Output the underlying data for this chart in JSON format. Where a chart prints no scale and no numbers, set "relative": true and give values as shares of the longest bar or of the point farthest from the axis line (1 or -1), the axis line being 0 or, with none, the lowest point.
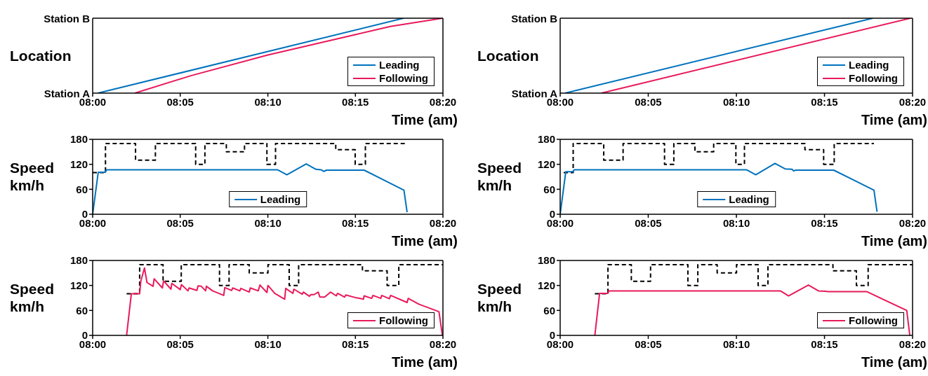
{
  "chart_data": [
    {
      "type": "line",
      "ylabel": "Location",
      "xlabel": "Time (am)",
      "legend": "bottom right",
      "relative": true,
      "annotations": [
        "Station B",
        "Station A"
      ],
      "xlim": [
        8,
        8.3333
      ],
      "xticks": [
        {
          "value": 8,
          "label": "08:00"
        },
        {
          "value": 8.0833,
          "label": "08:05"
        },
        {
          "value": 8.1667,
          "label": "08:10"
        },
        {
          "value": 8.25,
          "label": "08:15"
        },
        {
          "value": 8.3333,
          "label": "08:20"
        }
      ],
      "series": [
        {
          "name": "Leading",
          "color": "#0072bd",
          "x": [
            8.005,
            8.2958
          ],
          "values": [
            0,
            1
          ]
        },
        {
          "name": "Following",
          "color": "#e8195a",
          "x": [
            8.0402,
            8.0928,
            8.1668,
            8.2498,
            8.2833,
            8.3328
          ],
          "values": [
            0,
            0.23,
            0.51,
            0.78,
            0.89,
            1
          ]
        }
      ]
    },
    {
      "type": "line",
      "ylabel": "Location",
      "xlabel": "Time (am)",
      "legend": "bottom right",
      "relative": true,
      "annotations": [
        "Station B",
        "Station A"
      ],
      "xlim": [
        8,
        8.3333
      ],
      "xticks": [
        {
          "value": 8,
          "label": "08:00"
        },
        {
          "value": 8.0833,
          "label": "08:05"
        },
        {
          "value": 8.1667,
          "label": "08:10"
        },
        {
          "value": 8.25,
          "label": "08:15"
        },
        {
          "value": 8.3333,
          "label": "08:20"
        }
      ],
      "series": [
        {
          "name": "Leading",
          "color": "#0072bd",
          "x": [
            8.0047,
            8.2957
          ],
          "values": [
            0,
            1
          ]
        },
        {
          "name": "Following",
          "color": "#e8195a",
          "x": [
            8.039,
            8.3312
          ],
          "values": [
            0,
            1
          ]
        }
      ]
    },
    {
      "type": "line",
      "ylabel": "Speed km/h",
      "xlabel": "Time (am)",
      "legend": "bottom",
      "xlim": [
        8,
        8.3333
      ],
      "xticks": [
        {
          "value": 8,
          "label": "08:00"
        },
        {
          "value": 8.0833,
          "label": "08:05"
        },
        {
          "value": 8.1667,
          "label": "08:10"
        },
        {
          "value": 8.25,
          "label": "08:15"
        },
        {
          "value": 8.3333,
          "label": "08:20"
        }
      ],
      "ylim": [
        0,
        180
      ],
      "yticks": [
        0,
        60,
        120,
        180
      ],
      "series": [
        {
          "type": "step",
          "color": "#000000",
          "line_style": "dashed",
          "x": [
            8,
            8.0122,
            8.0408,
            8.0597,
            8.098,
            8.1068,
            8.1272,
            8.1445,
            8.1658,
            8.174,
            8.2313,
            8.2498,
            8.2595,
            8.297
          ],
          "values": [
            100,
            170,
            130,
            170,
            120,
            170,
            150,
            170,
            120,
            170,
            155,
            120,
            170,
            170
          ]
        },
        {
          "name": "Leading",
          "color": "#0072bd",
          "x": [
            8,
            8.0053,
            8.0122,
            8.0132,
            8.1758,
            8.1848,
            8.2032,
            8.2125,
            8.2173,
            8.22,
            8.2225,
            8.2583,
            8.2962,
            8.2992
          ],
          "values": [
            0,
            101,
            101,
            107,
            107,
            95,
            121,
            108,
            107,
            103,
            106,
            106,
            58,
            5
          ]
        }
      ]
    },
    {
      "type": "line",
      "ylabel": "Speed km/h",
      "xlabel": "Time (am)",
      "legend": "bottom",
      "xlim": [
        8,
        8.3333
      ],
      "xticks": [
        {
          "value": 8,
          "label": "08:00"
        },
        {
          "value": 8.0833,
          "label": "08:05"
        },
        {
          "value": 8.1667,
          "label": "08:10"
        },
        {
          "value": 8.25,
          "label": "08:15"
        },
        {
          "value": 8.3333,
          "label": "08:20"
        }
      ],
      "ylim": [
        0,
        180
      ],
      "yticks": [
        0,
        60,
        120,
        180
      ],
      "series": [
        {
          "type": "step",
          "color": "#000000",
          "line_style": "dashed",
          "x": [
            8.0033,
            8.0123,
            8.0412,
            8.0595,
            8.0987,
            8.1075,
            8.1275,
            8.1452,
            8.1662,
            8.1743,
            8.2315,
            8.2492,
            8.2592,
            8.2968
          ],
          "values": [
            100,
            170,
            130,
            170,
            120,
            170,
            150,
            170,
            120,
            170,
            155,
            120,
            170,
            170
          ]
        },
        {
          "name": "Leading",
          "color": "#0072bd",
          "x": [
            8,
            8.0053,
            8.012,
            8.0133,
            8.1762,
            8.185,
            8.2032,
            8.2127,
            8.2193,
            8.2208,
            8.2227,
            8.2587,
            8.2968,
            8.2997
          ],
          "values": [
            0,
            102,
            102,
            107,
            107,
            95,
            122,
            109,
            108,
            104,
            106,
            106,
            58,
            6
          ]
        }
      ]
    },
    {
      "type": "line",
      "ylabel": "Speed km/h",
      "xlabel": "Time (am)",
      "legend": "bottom right",
      "xlim": [
        8,
        8.3333
      ],
      "xticks": [
        {
          "value": 8,
          "label": "08:00"
        },
        {
          "value": 8.0833,
          "label": "08:05"
        },
        {
          "value": 8.1667,
          "label": "08:10"
        },
        {
          "value": 8.25,
          "label": "08:15"
        },
        {
          "value": 8.3333,
          "label": "08:20"
        }
      ],
      "ylim": [
        0,
        180
      ],
      "yticks": [
        0,
        60,
        120,
        180
      ],
      "series": [
        {
          "type": "step",
          "color": "#000000",
          "line_style": "dashed",
          "x": [
            8.0323,
            8.0447,
            8.067,
            8.0843,
            8.1207,
            8.1298,
            8.149,
            8.1668,
            8.187,
            8.196,
            8.2567,
            8.2802,
            8.2913,
            8.3333
          ],
          "values": [
            100,
            170,
            130,
            170,
            120,
            170,
            150,
            170,
            120,
            170,
            155,
            120,
            170,
            170
          ]
        },
        {
          "name": "Following",
          "color": "#e8195a",
          "x": [
            8.0323,
            8.0368,
            8.0447,
            8.0458,
            8.0493,
            8.0517,
            8.0575,
            8.0585,
            8.0663,
            8.0675,
            8.0745,
            8.0753,
            8.0833,
            8.0845,
            8.0907,
            8.0917,
            8.0992,
            8.1003,
            8.1033,
            8.1075,
            8.1082,
            8.1142,
            8.1247,
            8.1257,
            8.1322,
            8.1333,
            8.14,
            8.141,
            8.149,
            8.15,
            8.1575,
            8.1592,
            8.1658,
            8.1668,
            8.1732,
            8.1827,
            8.1837,
            8.1905,
            8.1915,
            8.1993,
            8.2005,
            8.2062,
            8.2077,
            8.2107,
            8.2147,
            8.2162,
            8.2207,
            8.2263,
            8.2318,
            8.233,
            8.2398,
            8.2408,
            8.2498,
            8.2577,
            8.2583,
            8.2655,
            8.2667,
            8.2742,
            8.275,
            8.2823,
            8.2835,
            8.2992,
            8.3003,
            8.3103,
            8.3295,
            8.3328
          ],
          "values": [
            0,
            100,
            100,
            130,
            162,
            127,
            118,
            136,
            114,
            131,
            111,
            125,
            110,
            122,
            107,
            114,
            108,
            119,
            118,
            107,
            118,
            107,
            96,
            115,
            108,
            114,
            107,
            113,
            104,
            114,
            107,
            121,
            103,
            120,
            101,
            87,
            113,
            101,
            111,
            99,
            104,
            94,
            98,
            98,
            104,
            92,
            92,
            104,
            95,
            101,
            92,
            97,
            91,
            87,
            95,
            89,
            96,
            89,
            96,
            88,
            96,
            79,
            89,
            75,
            57,
            0
          ]
        }
      ]
    },
    {
      "type": "line",
      "ylabel": "Speed km/h",
      "xlabel": "Time (am)",
      "legend": "bottom right",
      "xlim": [
        8,
        8.3333
      ],
      "xticks": [
        {
          "value": 8,
          "label": "08:00"
        },
        {
          "value": 8.0833,
          "label": "08:05"
        },
        {
          "value": 8.1667,
          "label": "08:10"
        },
        {
          "value": 8.25,
          "label": "08:15"
        },
        {
          "value": 8.3333,
          "label": "08:20"
        }
      ],
      "ylim": [
        0,
        180
      ],
      "yticks": [
        0,
        60,
        120,
        180
      ],
      "series": [
        {
          "type": "step",
          "color": "#000000",
          "line_style": "dashed",
          "x": [
            8.0328,
            8.0452,
            8.0673,
            8.0855,
            8.1208,
            8.1302,
            8.1485,
            8.1668,
            8.1872,
            8.1965,
            8.258,
            8.2802,
            8.2913,
            8.3333
          ],
          "values": [
            100,
            170,
            130,
            170,
            120,
            170,
            150,
            170,
            120,
            170,
            155,
            120,
            170,
            170
          ]
        },
        {
          "name": "Following",
          "color": "#e8195a",
          "x": [
            8.0328,
            8.0373,
            8.0452,
            8.046,
            8.2083,
            8.216,
            8.2348,
            8.2443,
            8.251,
            8.2532,
            8.2902,
            8.3278,
            8.3307
          ],
          "values": [
            0,
            101,
            101,
            107,
            107,
            95,
            121,
            107,
            106,
            105,
            105,
            60,
            0
          ]
        }
      ]
    }
  ]
}
